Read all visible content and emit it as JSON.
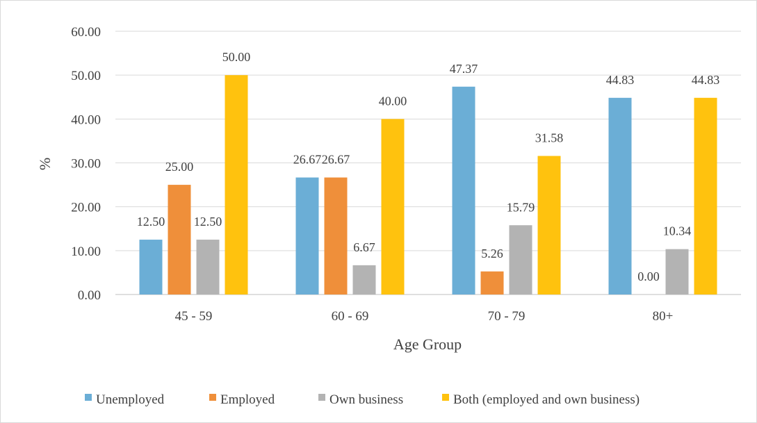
{
  "chart_data": {
    "type": "bar",
    "title": "",
    "xlabel": "Age Group",
    "ylabel": "%",
    "ylim": [
      0,
      60
    ],
    "yticks": [
      "0.00",
      "10.00",
      "20.00",
      "30.00",
      "40.00",
      "50.00",
      "60.00"
    ],
    "grid": true,
    "legend_position": "bottom",
    "categories": [
      "45 - 59",
      "60 - 69",
      "70 - 79",
      "80+"
    ],
    "series": [
      {
        "name": "Unemployed",
        "color": "#6baed6",
        "values": [
          12.5,
          26.67,
          47.37,
          44.83
        ],
        "labels": [
          "12.50",
          "26.67",
          "47.37",
          "44.83"
        ]
      },
      {
        "name": "Employed",
        "color": "#ef8f3a",
        "values": [
          25.0,
          26.67,
          5.26,
          0.0
        ],
        "labels": [
          "25.00",
          "26.67",
          "5.26",
          "0.00"
        ]
      },
      {
        "name": "Own business",
        "color": "#b3b3b3",
        "values": [
          12.5,
          6.67,
          15.79,
          10.34
        ],
        "labels": [
          "12.50",
          "6.67",
          "15.79",
          "10.34"
        ]
      },
      {
        "name": "Both (employed and own business)",
        "color": "#ffc20e",
        "values": [
          50.0,
          40.0,
          31.58,
          44.83
        ],
        "labels": [
          "50.00",
          "40.00",
          "31.58",
          "44.83"
        ]
      }
    ]
  }
}
